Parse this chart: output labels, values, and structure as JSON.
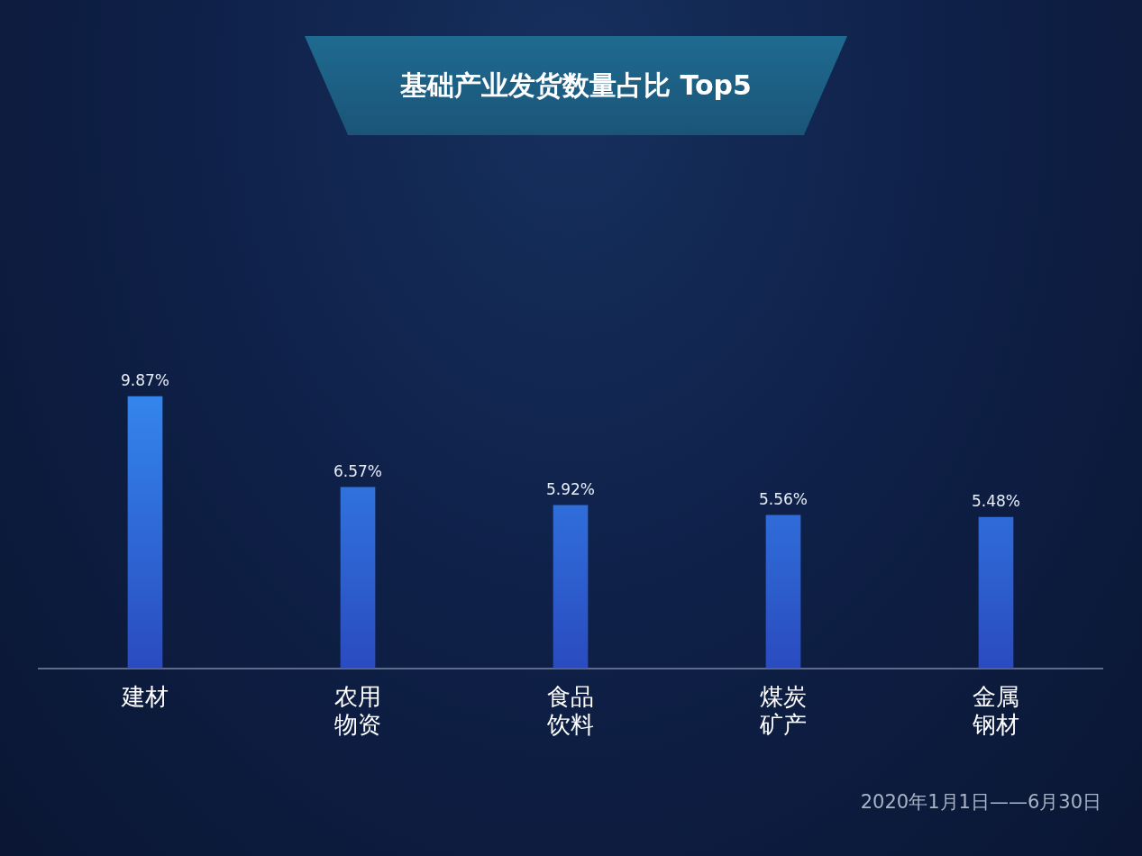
{
  "chart_data": {
    "type": "bar",
    "title": "基础产业发货数量占比 Top5",
    "categories": [
      "建材",
      "农用物资",
      "食品饮料",
      "煤炭矿产",
      "金属钢材"
    ],
    "values": [
      9.87,
      6.57,
      5.92,
      5.56,
      5.48
    ],
    "value_labels": [
      "9.87%",
      "6.57%",
      "5.92%",
      "5.56%",
      "5.48%"
    ],
    "color": "#3592f5",
    "grid": false,
    "legend": false,
    "tick_labels": "x",
    "annotations": [
      "2020年1月1日——6月30日"
    ]
  }
}
